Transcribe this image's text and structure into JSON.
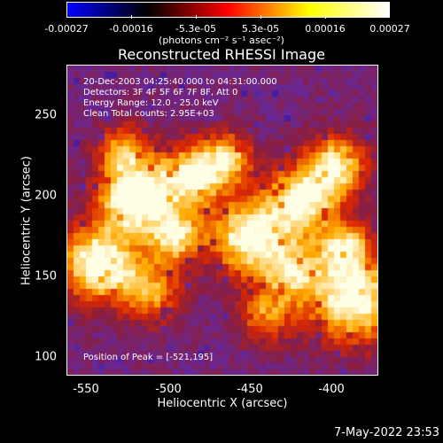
{
  "colorbar": {
    "ticks": [
      "-0.00027",
      "-0.00016",
      "-5.3e-05",
      "5.3e-05",
      "0.00016",
      "0.00027"
    ],
    "unit": "(photons cm⁻² s⁻¹ asec⁻²)",
    "colors": [
      "#0000ff",
      "#000000",
      "#ff0000",
      "#ffff00",
      "#ffffff"
    ]
  },
  "title": "Reconstructed RHESSI Image",
  "overlay": {
    "time": "20-Dec-2003 04:25:40.000 to 04:31:00.000",
    "detectors": "Detectors: 3F 4F 5F 6F 7F 8F, Att 0",
    "energy": "Energy Range: 12.0 - 25.0 keV",
    "method": "Clean     Total counts: 2.95E+03",
    "peak": "Position of Peak = [-521,195]"
  },
  "axes": {
    "xlabel": "Heliocentric X (arcsec)",
    "ylabel": "Heliocentric Y (arcsec)",
    "xticks": [
      "-550",
      "-500",
      "-450",
      "-400"
    ],
    "yticks": [
      "100",
      "150",
      "200",
      "250"
    ]
  },
  "footer": "7-May-2022 23:53"
}
